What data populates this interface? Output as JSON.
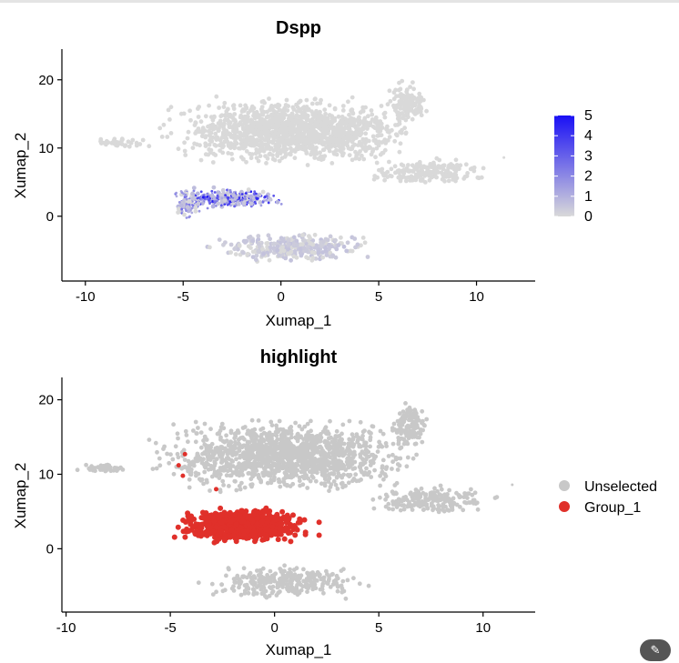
{
  "chart_data": [
    {
      "type": "scatter",
      "title": "Dspp",
      "xlabel": "Xumap_1",
      "ylabel": "Xumap_2",
      "xlim": [
        -11.2,
        13.0
      ],
      "ylim": [
        -9.5,
        24.5
      ],
      "xticks": [
        -10,
        -5,
        0,
        5,
        10
      ],
      "yticks": [
        0,
        10,
        20
      ],
      "grid": false,
      "color_scale": {
        "label": "",
        "min": 0,
        "max": 5,
        "ticks": [
          0,
          1,
          2,
          3,
          4,
          5
        ],
        "low_color": "#d9d9d9",
        "high_color": "#1a10f5"
      },
      "regions": [
        {
          "name": "main-cloud",
          "center": [
            0.5,
            12.5
          ],
          "spread": [
            5.2,
            4.0
          ],
          "expr_max": 0.2
        },
        {
          "name": "upper-right-arm",
          "center": [
            6.5,
            16.5
          ],
          "spread": [
            0.9,
            2.8
          ],
          "expr_max": 0.1
        },
        {
          "name": "right-arm",
          "center": [
            7.5,
            6.5
          ],
          "spread": [
            2.6,
            1.6
          ],
          "expr_max": 0.1
        },
        {
          "name": "left-tail",
          "center": [
            -8.2,
            10.8
          ],
          "spread": [
            1.2,
            0.5
          ],
          "expr_max": 0.1
        },
        {
          "name": "lower-cluster",
          "center": [
            0.5,
            -4.5
          ],
          "spread": [
            3.2,
            1.8
          ],
          "expr_max": 0.6
        },
        {
          "name": "dspp-hotspot",
          "center": [
            -2.5,
            2.6
          ],
          "spread": [
            2.2,
            1.2
          ],
          "expr_max": 5
        },
        {
          "name": "dspp-left-rim",
          "center": [
            -4.8,
            2.0
          ],
          "spread": [
            0.6,
            2.0
          ],
          "expr_max": 3
        }
      ]
    },
    {
      "type": "scatter",
      "title": "highlight",
      "xlabel": "Xumap_1",
      "ylabel": "Xumap_2",
      "xlim": [
        -10.2,
        12.5
      ],
      "ylim": [
        -8.5,
        23.0
      ],
      "xticks": [
        -10,
        -5,
        0,
        5,
        10
      ],
      "yticks": [
        0,
        10,
        20
      ],
      "grid": false,
      "legend_position": "right",
      "series": [
        {
          "name": "Unselected",
          "color": "#c8c8c8"
        },
        {
          "name": "Group_1",
          "color": "#e0302a"
        }
      ],
      "group_1_region": {
        "center": [
          -1.5,
          3.2
        ],
        "spread": [
          2.9,
          2.0
        ]
      },
      "group_1_outliers": [
        [
          -4.3,
          12.7
        ],
        [
          -4.6,
          11.2
        ],
        [
          -4.4,
          9.8
        ],
        [
          -2.8,
          8.0
        ]
      ]
    }
  ],
  "ui": {
    "magic_button_icon": "wand-icon"
  }
}
